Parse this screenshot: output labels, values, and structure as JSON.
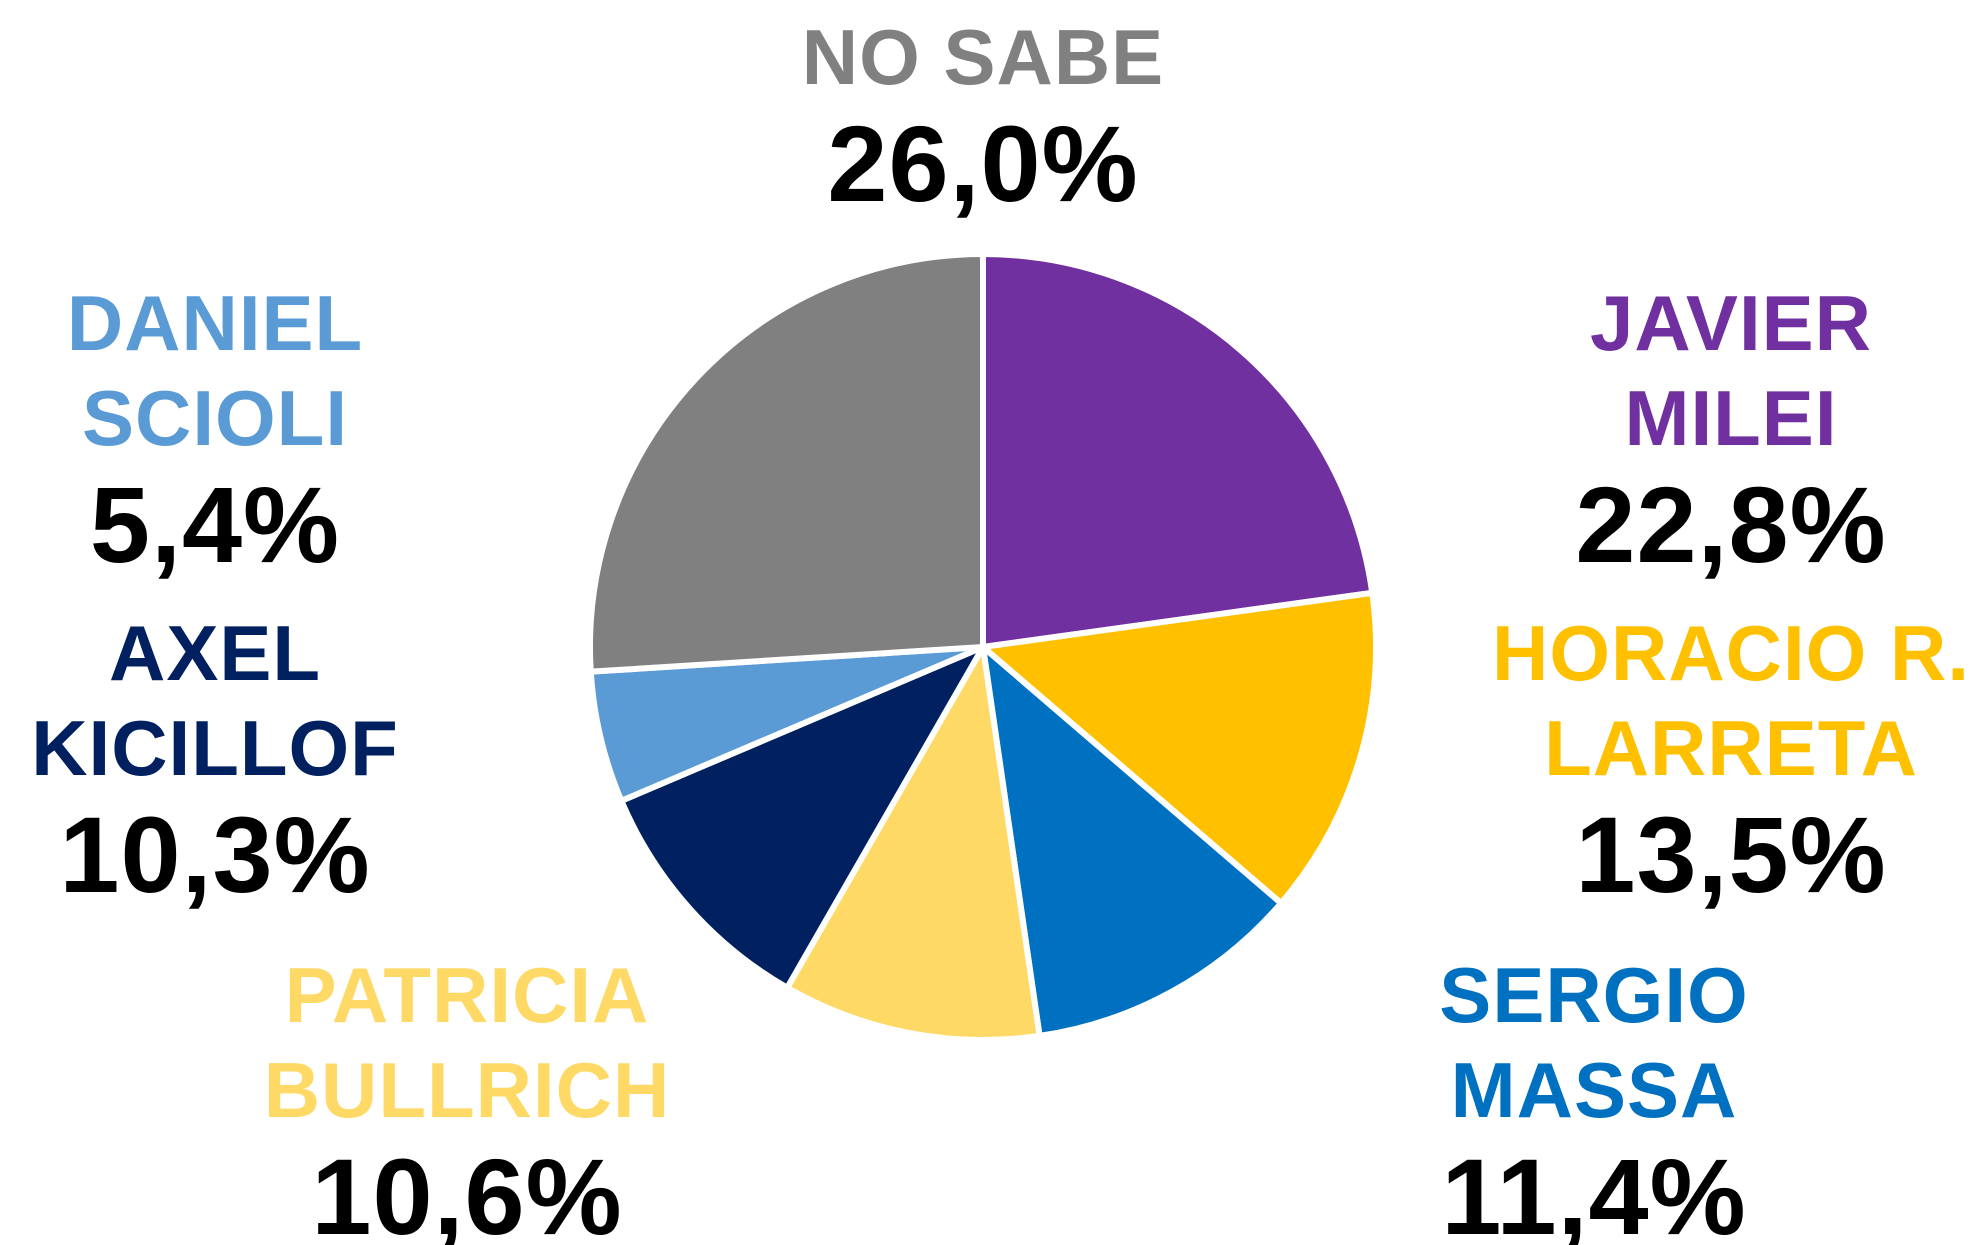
{
  "chart_data": {
    "type": "pie",
    "categories": [
      "JAVIER MILEI",
      "HORACIO R. LARRETA",
      "SERGIO MASSA",
      "PATRICIA BULLRICH",
      "AXEL KICILLOF",
      "DANIEL SCIOLI",
      "NO SABE"
    ],
    "values": [
      22.8,
      13.5,
      11.4,
      10.6,
      10.3,
      5.4,
      26.0
    ],
    "value_labels": [
      "22,8%",
      "13,5%",
      "11,4%",
      "10,6%",
      "10,3%",
      "5,4%",
      "26,0%"
    ],
    "colors": [
      "#7030a0",
      "#ffc000",
      "#0070c0",
      "#ffd966",
      "#002060",
      "#5b9bd5",
      "#808080"
    ]
  }
}
